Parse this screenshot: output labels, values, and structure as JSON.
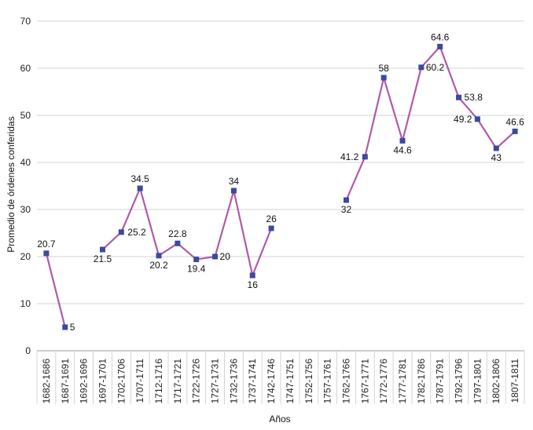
{
  "chart_data": {
    "type": "line",
    "title": "",
    "xlabel": "Años",
    "ylabel": "Promedio de órdenes conferidas",
    "ylim": [
      0,
      70
    ],
    "yticks": [
      0,
      10,
      20,
      30,
      40,
      50,
      60,
      70
    ],
    "grid": "horizontal",
    "categories": [
      "1682-1686",
      "1687-1691",
      "1692-1696",
      "1697-1701",
      "1702-1706",
      "1707-1711",
      "1712-1716",
      "1717-1721",
      "1722-1726",
      "1727-1731",
      "1732-1736",
      "1737-1741",
      "1742-1746",
      "1747-1751",
      "1752-1756",
      "1757-1761",
      "1762-1766",
      "1767-1771",
      "1772-1776",
      "1777-1781",
      "1782-1786",
      "1787-1791",
      "1792-1796",
      "1797-1801",
      "1802-1806",
      "1807-1811"
    ],
    "series": [
      {
        "name": "",
        "color": "#b05aa8",
        "marker_color": "#3b4a9c",
        "values": [
          20.7,
          5,
          null,
          21.5,
          25.2,
          34.5,
          20.2,
          22.8,
          19.4,
          20,
          34,
          16,
          26,
          null,
          null,
          null,
          32,
          41.2,
          58,
          44.6,
          60.2,
          64.6,
          53.8,
          49.2,
          43,
          46.6
        ]
      }
    ]
  }
}
